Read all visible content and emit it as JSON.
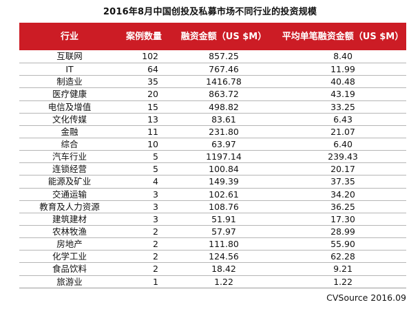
{
  "title": "2016年8月中国创投及私募市场不同行业的投资规模",
  "headers": {
    "industry": "行业",
    "cases": "案例数量",
    "amount": "融资金额（US $M）",
    "average": "平均单笔融资金额（US $M）"
  },
  "rows": [
    {
      "industry": "互联网",
      "cases": "102",
      "amount": "857.25",
      "average": "8.40"
    },
    {
      "industry": "IT",
      "cases": "64",
      "amount": "767.46",
      "average": "11.99"
    },
    {
      "industry": "制造业",
      "cases": "35",
      "amount": "1416.78",
      "average": "40.48"
    },
    {
      "industry": "医疗健康",
      "cases": "20",
      "amount": "863.72",
      "average": "43.19"
    },
    {
      "industry": "电信及增值",
      "cases": "15",
      "amount": "498.82",
      "average": "33.25"
    },
    {
      "industry": "文化传媒",
      "cases": "13",
      "amount": "83.61",
      "average": "6.43"
    },
    {
      "industry": "金融",
      "cases": "11",
      "amount": "231.80",
      "average": "21.07"
    },
    {
      "industry": "综合",
      "cases": "10",
      "amount": "63.97",
      "average": "6.40"
    },
    {
      "industry": "汽车行业",
      "cases": "5",
      "amount": "1197.14",
      "average": "239.43"
    },
    {
      "industry": "连锁经营",
      "cases": "5",
      "amount": "100.84",
      "average": "20.17"
    },
    {
      "industry": "能源及矿业",
      "cases": "4",
      "amount": "149.39",
      "average": "37.35"
    },
    {
      "industry": "交通运输",
      "cases": "3",
      "amount": "102.61",
      "average": "34.20"
    },
    {
      "industry": "教育及人力资源",
      "cases": "3",
      "amount": "108.76",
      "average": "36.25"
    },
    {
      "industry": "建筑建材",
      "cases": "3",
      "amount": "51.91",
      "average": "17.30"
    },
    {
      "industry": "农林牧渔",
      "cases": "2",
      "amount": "57.97",
      "average": "28.99"
    },
    {
      "industry": "房地产",
      "cases": "2",
      "amount": "111.80",
      "average": "55.90"
    },
    {
      "industry": "化学工业",
      "cases": "2",
      "amount": "124.56",
      "average": "62.28"
    },
    {
      "industry": "食品饮料",
      "cases": "2",
      "amount": "18.42",
      "average": "9.21"
    },
    {
      "industry": "旅游业",
      "cases": "1",
      "amount": "1.22",
      "average": "1.22"
    }
  ],
  "source": "CVSource 2016.09",
  "colors": {
    "header_bg": "#cc1c25",
    "header_text": "#ffffff"
  }
}
